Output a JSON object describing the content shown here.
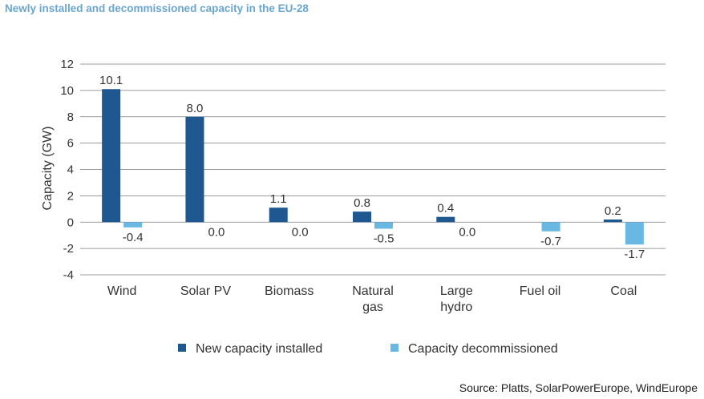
{
  "chart_data": {
    "type": "bar",
    "title": "Newly installed and decommissioned capacity in the EU-28",
    "ylabel": "Capacity (GW)",
    "xlabel": "",
    "ylim": [
      -4,
      12
    ],
    "yticks": [
      "-4",
      "-2",
      "0",
      "2",
      "4",
      "6",
      "8",
      "10",
      "12"
    ],
    "ytick_values": [
      -4,
      -2,
      0,
      2,
      4,
      6,
      8,
      10,
      12
    ],
    "grid": true,
    "legend_position": "bottom",
    "categories": [
      [
        "Wind"
      ],
      [
        "Solar PV"
      ],
      [
        "Biomass"
      ],
      [
        "Natural",
        "gas"
      ],
      [
        "Large",
        "hydro"
      ],
      [
        "Fuel oil"
      ],
      [
        "Coal"
      ]
    ],
    "series": [
      {
        "name": "New capacity installed",
        "color": "#1f5891",
        "values": [
          10.1,
          8.0,
          1.1,
          0.8,
          0.4,
          null,
          0.2
        ],
        "labels": [
          "10.1",
          "8.0",
          "1.1",
          "0.8",
          "0.4",
          "",
          "0.2"
        ]
      },
      {
        "name": "Capacity decommissioned",
        "color": "#69b8e4",
        "values": [
          -0.4,
          0.0,
          0.0,
          -0.5,
          0.0,
          -0.7,
          -1.7
        ],
        "labels": [
          "-0.4",
          "0.0",
          "0.0",
          "-0.5",
          "0.0",
          "-0.7",
          "-1.7"
        ]
      }
    ]
  },
  "source": "Source: Platts, SolarPowerEurope, WindEurope"
}
